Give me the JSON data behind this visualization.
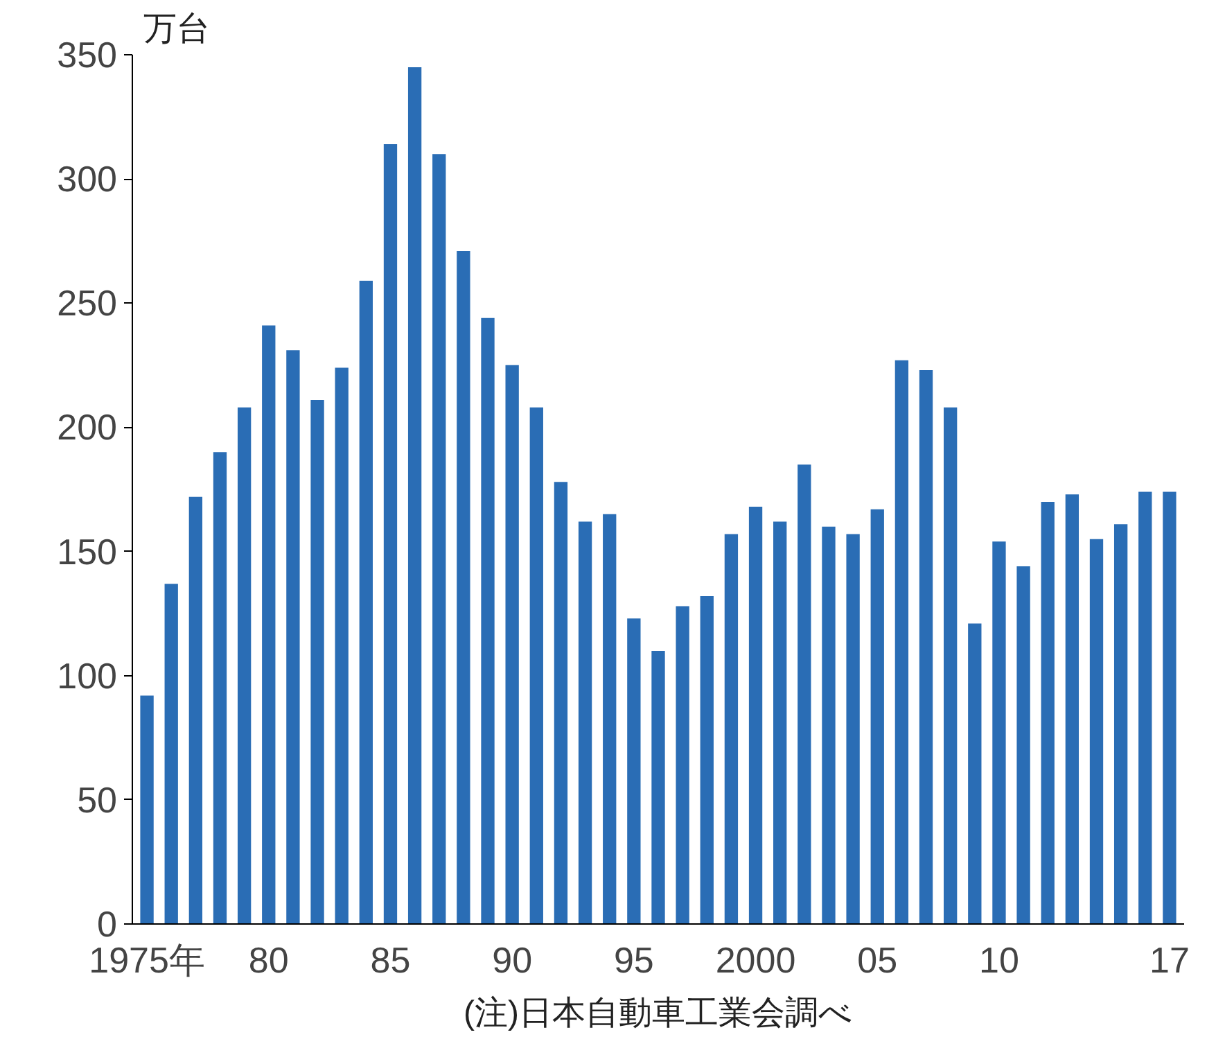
{
  "chart_data": {
    "type": "bar",
    "ylabel": "万台",
    "categories": [
      "1975年",
      null,
      null,
      null,
      null,
      "80",
      null,
      null,
      null,
      null,
      "85",
      null,
      null,
      null,
      null,
      "90",
      null,
      null,
      null,
      null,
      "95",
      null,
      null,
      null,
      null,
      "2000",
      null,
      null,
      null,
      null,
      "05",
      null,
      null,
      null,
      null,
      "10",
      null,
      null,
      null,
      null,
      null,
      null,
      "17"
    ],
    "values": [
      92,
      137,
      172,
      190,
      208,
      241,
      231,
      211,
      224,
      259,
      314,
      345,
      310,
      271,
      244,
      225,
      208,
      178,
      162,
      165,
      123,
      110,
      128,
      132,
      157,
      168,
      162,
      185,
      160,
      157,
      167,
      227,
      223,
      208,
      121,
      154,
      144,
      170,
      173,
      155,
      161,
      174,
      174
    ],
    "color": "#2a6db5",
    "ylim": [
      0,
      350
    ],
    "yticks": [
      0,
      50,
      100,
      150,
      200,
      250,
      300,
      350
    ],
    "grid": false,
    "annotations": [
      "(注)日本自動車工業会調べ"
    ]
  }
}
